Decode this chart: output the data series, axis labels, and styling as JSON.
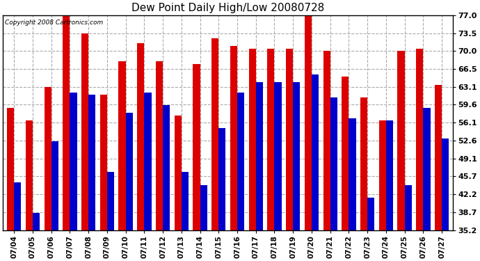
{
  "title": "Dew Point Daily High/Low 20080728",
  "copyright": "Copyright 2008 Cartronics.com",
  "dates": [
    "07/04",
    "07/05",
    "07/06",
    "07/07",
    "07/08",
    "07/09",
    "07/10",
    "07/11",
    "07/12",
    "07/13",
    "07/14",
    "07/15",
    "07/16",
    "07/17",
    "07/18",
    "07/19",
    "07/20",
    "07/21",
    "07/22",
    "07/23",
    "07/24",
    "07/25",
    "07/26",
    "07/27"
  ],
  "highs": [
    59.0,
    56.5,
    63.0,
    77.0,
    73.5,
    61.5,
    68.0,
    71.5,
    68.0,
    57.5,
    67.5,
    72.5,
    71.0,
    70.5,
    70.5,
    70.5,
    77.0,
    70.0,
    65.0,
    61.0,
    56.5,
    70.0,
    70.5,
    63.5
  ],
  "lows": [
    44.5,
    38.5,
    52.5,
    62.0,
    61.5,
    46.5,
    58.0,
    62.0,
    59.5,
    46.5,
    44.0,
    55.0,
    62.0,
    64.0,
    64.0,
    64.0,
    65.5,
    61.0,
    57.0,
    41.5,
    56.5,
    44.0,
    59.0,
    53.0
  ],
  "high_color": "#dd0000",
  "low_color": "#0000cc",
  "bg_color": "#ffffff",
  "grid_color": "#aaaaaa",
  "yticks": [
    35.2,
    38.7,
    42.2,
    45.7,
    49.1,
    52.6,
    56.1,
    59.6,
    63.1,
    66.5,
    70.0,
    73.5,
    77.0
  ],
  "ymin": 35.2,
  "ymax": 77.0,
  "bar_width": 0.38
}
